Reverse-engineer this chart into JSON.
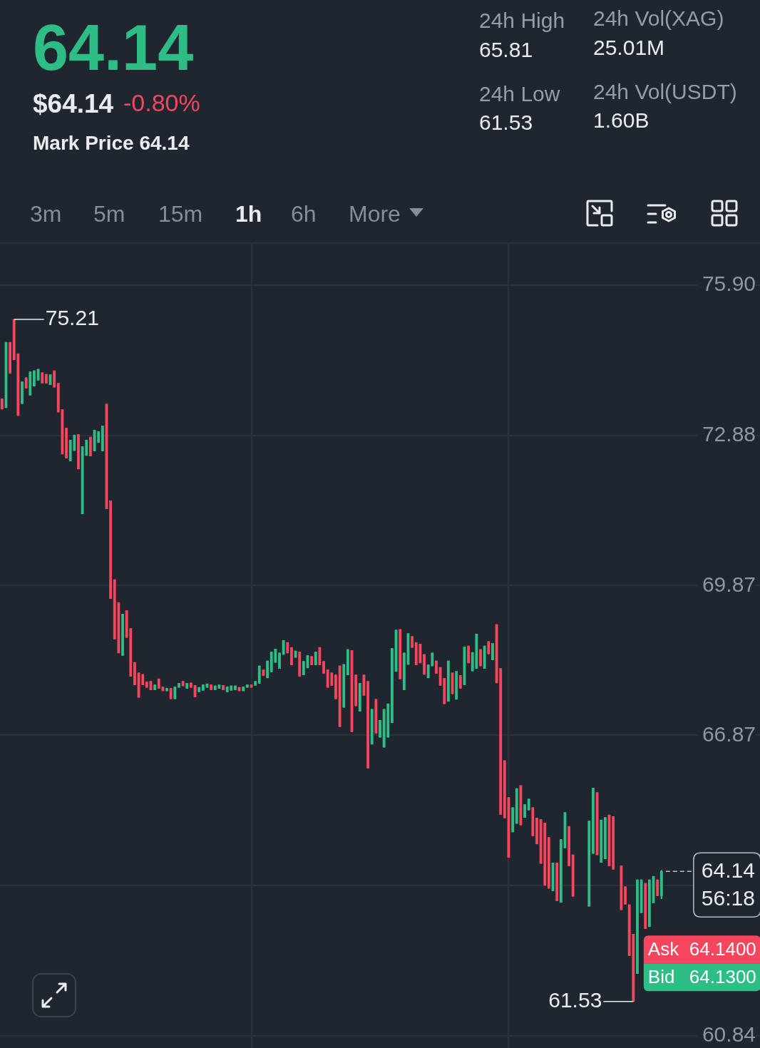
{
  "chart_data": [
    {
      "type": "other",
      "annotations": [
        "64.14",
        "$64.14",
        "-0.80%",
        "Mark Price 64.14",
        "24h High",
        "65.81",
        "24h Vol(XAG)",
        "25.01M",
        "24h Low",
        "61.53",
        "24h Vol(USDT)",
        "1.60B",
        "3m",
        "5m",
        "15m",
        "1h",
        "6h",
        "More"
      ]
    },
    {
      "type": "candlestick",
      "categories": [
        null,
        null,
        null,
        null,
        null,
        null,
        null,
        null,
        null,
        null,
        null,
        null,
        null,
        null,
        null,
        null,
        null,
        null,
        null,
        null,
        null,
        null,
        null,
        null,
        null,
        null,
        null,
        null,
        null,
        null,
        null,
        null,
        null,
        null,
        null,
        null,
        null,
        null,
        null,
        null,
        null,
        null,
        null,
        null,
        null,
        null,
        null,
        null,
        null,
        null,
        null,
        null,
        null,
        null,
        null,
        null,
        null,
        null,
        null,
        null,
        null,
        null,
        null,
        null,
        null,
        null,
        null,
        null,
        null,
        null,
        null,
        null,
        null,
        null,
        null,
        null,
        null,
        null,
        null,
        null,
        null,
        null,
        null,
        null,
        null,
        null,
        null,
        null,
        null,
        null,
        null,
        null,
        null,
        null,
        null,
        null,
        null,
        null,
        null,
        null,
        null,
        null,
        null,
        null,
        null,
        null,
        null,
        null,
        null,
        null,
        null,
        null,
        null,
        null,
        null,
        null,
        null,
        null,
        null,
        null,
        null,
        null,
        null,
        null,
        null,
        null,
        null,
        null,
        null,
        null,
        null,
        null,
        null,
        null,
        null,
        null,
        null,
        null,
        null,
        null,
        null,
        null,
        null,
        null,
        null,
        null,
        null,
        null,
        null,
        null,
        null,
        null,
        null,
        null,
        null,
        null,
        null,
        null,
        null,
        null,
        null,
        null,
        null,
        null,
        null,
        null,
        null,
        null,
        null,
        null,
        null,
        null,
        null,
        null,
        null,
        null,
        null,
        null,
        null,
        null,
        null,
        null,
        null,
        null,
        null,
        null,
        null,
        null,
        null
      ],
      "ohlc": [
        [
          73.62,
          73.62,
          73.41,
          73.41
        ],
        [
          73.44,
          74.75,
          73.44,
          74.75
        ],
        [
          74.75,
          74.75,
          74.13,
          74.13
        ],
        [
          75.21,
          75.21,
          74.4,
          74.4
        ],
        [
          74.52,
          74.52,
          73.28,
          73.28
        ],
        [
          73.52,
          73.96,
          73.52,
          73.96
        ],
        [
          74.04,
          74.04,
          73.83,
          73.83
        ],
        [
          73.69,
          74.16,
          73.69,
          74.16
        ],
        [
          73.87,
          74.18,
          73.87,
          74.18
        ],
        [
          73.99,
          74.21,
          73.99,
          74.21
        ],
        [
          74.14,
          74.14,
          73.93,
          73.93
        ],
        [
          74.11,
          74.11,
          73.93,
          73.93
        ],
        [
          73.9,
          74.1,
          73.9,
          74.1
        ],
        [
          74.18,
          74.18,
          73.85,
          73.85
        ],
        [
          73.93,
          73.93,
          73.35,
          73.35
        ],
        [
          73.4,
          73.4,
          72.51,
          72.51
        ],
        [
          73.03,
          73.03,
          72.43,
          72.43
        ],
        [
          72.37,
          72.79,
          72.37,
          72.79
        ],
        [
          72.58,
          72.89,
          72.58,
          72.89
        ],
        [
          72.9,
          72.9,
          72.21,
          72.21
        ],
        [
          71.31,
          72.66,
          71.31,
          72.66
        ],
        [
          72.48,
          72.79,
          72.48,
          72.79
        ],
        [
          72.85,
          72.85,
          72.47,
          72.47
        ],
        [
          72.57,
          72.99,
          72.57,
          72.99
        ],
        [
          72.74,
          72.96,
          72.74,
          72.96
        ],
        [
          72.57,
          73.07,
          72.57,
          73.07
        ],
        [
          73.51,
          73.51,
          71.41,
          71.41
        ],
        [
          71.57,
          71.57,
          69.61,
          69.61
        ],
        [
          69.99,
          69.99,
          68.8,
          68.8
        ],
        [
          69.53,
          69.53,
          68.52,
          68.52
        ],
        [
          68.47,
          69.3,
          68.47,
          69.3
        ],
        [
          69.37,
          69.37,
          68.83,
          68.83
        ],
        [
          69.01,
          69.01,
          68.05,
          68.05
        ],
        [
          68.33,
          68.33,
          67.88,
          67.88
        ],
        [
          68.12,
          68.12,
          67.63,
          67.63
        ],
        [
          68.09,
          68.09,
          67.88,
          67.88
        ],
        [
          67.94,
          67.94,
          67.83,
          67.83
        ],
        [
          67.95,
          67.95,
          67.78,
          67.78
        ],
        [
          67.78,
          67.88,
          67.78,
          67.88
        ],
        [
          68.0,
          68.0,
          67.81,
          67.81
        ],
        [
          67.84,
          67.84,
          67.76,
          67.76
        ],
        [
          67.76,
          67.81,
          67.76,
          67.81
        ],
        [
          67.81,
          67.81,
          67.6,
          67.6
        ],
        [
          67.6,
          67.84,
          67.6,
          67.84
        ],
        [
          67.83,
          67.91,
          67.83,
          67.91
        ],
        [
          67.95,
          67.95,
          67.86,
          67.86
        ],
        [
          67.81,
          67.91,
          67.81,
          67.91
        ],
        [
          67.92,
          67.92,
          67.83,
          67.83
        ],
        [
          67.87,
          67.87,
          67.64,
          67.64
        ],
        [
          67.74,
          67.83,
          67.74,
          67.83
        ],
        [
          67.77,
          67.88,
          67.77,
          67.88
        ],
        [
          67.83,
          67.9,
          67.83,
          67.9
        ],
        [
          67.88,
          67.88,
          67.78,
          67.78
        ],
        [
          67.78,
          67.86,
          67.78,
          67.86
        ],
        [
          67.81,
          67.88,
          67.81,
          67.88
        ],
        [
          67.87,
          67.87,
          67.78,
          67.78
        ],
        [
          67.74,
          67.84,
          67.74,
          67.84
        ],
        [
          67.77,
          67.86,
          67.77,
          67.86
        ],
        [
          67.78,
          67.86,
          67.78,
          67.86
        ],
        [
          67.83,
          67.83,
          67.76,
          67.76
        ],
        [
          67.76,
          67.84,
          67.76,
          67.84
        ],
        [
          67.83,
          67.88,
          67.83,
          67.88
        ],
        [
          67.88,
          67.88,
          67.83,
          67.83
        ],
        [
          67.87,
          67.95,
          67.87,
          67.95
        ],
        [
          67.91,
          68.26,
          67.91,
          68.26
        ],
        [
          68.18,
          68.18,
          68.07,
          68.07
        ],
        [
          68.02,
          68.36,
          68.02,
          68.36
        ],
        [
          68.14,
          68.54,
          68.14,
          68.54
        ],
        [
          68.33,
          68.6,
          68.33,
          68.6
        ],
        [
          68.21,
          68.52,
          68.21,
          68.52
        ],
        [
          68.49,
          68.77,
          68.49,
          68.77
        ],
        [
          68.73,
          68.73,
          68.52,
          68.52
        ],
        [
          68.63,
          68.63,
          68.28,
          68.28
        ],
        [
          68.43,
          68.56,
          68.43,
          68.56
        ],
        [
          68.54,
          68.54,
          68.05,
          68.05
        ],
        [
          68.08,
          68.35,
          68.08,
          68.35
        ],
        [
          68.22,
          68.47,
          68.22,
          68.47
        ],
        [
          68.45,
          68.45,
          68.28,
          68.28
        ],
        [
          68.28,
          68.54,
          68.28,
          68.54
        ],
        [
          68.63,
          68.63,
          68.28,
          68.28
        ],
        [
          68.35,
          68.35,
          68.11,
          68.11
        ],
        [
          68.18,
          68.18,
          67.83,
          67.83
        ],
        [
          68.12,
          68.12,
          67.87,
          67.87
        ],
        [
          68.08,
          68.08,
          67.6,
          67.6
        ],
        [
          68.26,
          68.26,
          67.04,
          67.04
        ],
        [
          67.43,
          68.29,
          67.43,
          68.29
        ],
        [
          68.08,
          68.59,
          68.08,
          68.59
        ],
        [
          68.57,
          68.57,
          66.94,
          66.94
        ],
        [
          68.08,
          68.08,
          67.46,
          67.46
        ],
        [
          67.35,
          67.91,
          67.35,
          67.91
        ],
        [
          68.08,
          68.08,
          67.67,
          67.67
        ],
        [
          67.95,
          67.95,
          66.21,
          66.21
        ],
        [
          66.69,
          67.39,
          66.69,
          67.39
        ],
        [
          67.59,
          67.59,
          66.91,
          66.91
        ],
        [
          66.83,
          67.17,
          66.83,
          67.17
        ],
        [
          66.63,
          67.39,
          66.63,
          67.39
        ],
        [
          66.83,
          67.5,
          66.83,
          67.5
        ],
        [
          67.12,
          68.61,
          67.12,
          68.61
        ],
        [
          68.15,
          68.98,
          68.15,
          68.98
        ],
        [
          68.99,
          68.99,
          68.0,
          68.0
        ],
        [
          67.78,
          68.52,
          67.78,
          68.52
        ],
        [
          68.29,
          68.91,
          68.29,
          68.91
        ],
        [
          68.85,
          68.85,
          68.63,
          68.63
        ],
        [
          68.73,
          68.73,
          68.28,
          68.28
        ],
        [
          68.7,
          68.7,
          68.32,
          68.32
        ],
        [
          68.49,
          68.49,
          68.09,
          68.09
        ],
        [
          68.02,
          68.28,
          68.02,
          68.28
        ],
        [
          68.26,
          68.52,
          68.26,
          68.52
        ],
        [
          68.36,
          68.36,
          68.11,
          68.11
        ],
        [
          68.23,
          68.23,
          67.87,
          67.87
        ],
        [
          68.01,
          68.01,
          67.5,
          67.5
        ],
        [
          67.55,
          68.36,
          67.55,
          68.36
        ],
        [
          68.12,
          68.12,
          67.7,
          67.7
        ],
        [
          67.59,
          68.15,
          67.59,
          68.15
        ],
        [
          68.07,
          68.07,
          67.81,
          67.81
        ],
        [
          67.88,
          68.64,
          67.88,
          68.64
        ],
        [
          68.66,
          68.66,
          68.32,
          68.32
        ],
        [
          68.16,
          68.53,
          68.16,
          68.53
        ],
        [
          68.21,
          68.9,
          68.21,
          68.9
        ],
        [
          68.59,
          68.59,
          68.26,
          68.26
        ],
        [
          68.21,
          68.66,
          68.21,
          68.66
        ],
        [
          68.75,
          68.75,
          68.5,
          68.5
        ],
        [
          68.38,
          68.71,
          68.38,
          68.71
        ],
        [
          69.09,
          69.09,
          67.92,
          67.92
        ],
        [
          68.21,
          68.21,
          65.28,
          65.28
        ],
        [
          66.36,
          66.36,
          65.21,
          65.21
        ],
        [
          65.62,
          65.62,
          64.42,
          64.42
        ],
        [
          64.93,
          65.42,
          64.93,
          65.42
        ],
        [
          65.1,
          65.8,
          65.1,
          65.8
        ],
        [
          65.86,
          65.86,
          65.07,
          65.07
        ],
        [
          65.22,
          65.48,
          65.22,
          65.48
        ],
        [
          65.37,
          65.59,
          65.37,
          65.59
        ],
        [
          65.42,
          65.42,
          64.85,
          64.85
        ],
        [
          65.21,
          65.21,
          64.69,
          64.69
        ],
        [
          65.18,
          65.18,
          64.3,
          64.3
        ],
        [
          65.11,
          65.11,
          63.86,
          63.86
        ],
        [
          64.82,
          64.82,
          63.8,
          63.8
        ],
        [
          63.75,
          64.31,
          63.75,
          64.31
        ],
        [
          64.31,
          64.31,
          63.55,
          63.55
        ],
        [
          63.52,
          64.78,
          63.52,
          64.78
        ],
        [
          64.61,
          65.32,
          64.61,
          65.32
        ],
        [
          65.04,
          65.04,
          64.25,
          64.25
        ],
        [
          64.47,
          64.47,
          63.64,
          63.64
        ],
        null,
        null,
        null,
        [
          63.44,
          65.15,
          63.44,
          65.15
        ],
        [
          64.5,
          65.81,
          64.5,
          65.81
        ],
        [
          65.72,
          65.72,
          64.47,
          64.47
        ],
        [
          64.32,
          65.17,
          64.32,
          65.17
        ],
        [
          64.39,
          65.22,
          64.39,
          65.22
        ],
        [
          65.27,
          65.27,
          64.25,
          64.25
        ],
        [
          65.24,
          65.24,
          64.18,
          64.18
        ],
        null,
        [
          64.25,
          64.25,
          63.37,
          63.37
        ],
        [
          63.83,
          63.83,
          63.48,
          63.48
        ],
        [
          63.47,
          63.47,
          62.45,
          62.45
        ],
        [
          62.88,
          62.88,
          61.53,
          61.53
        ],
        [
          62.09,
          63.97,
          62.09,
          63.97
        ],
        [
          63.31,
          63.97,
          63.31,
          63.97
        ],
        [
          63.9,
          63.9,
          62.99,
          62.99
        ],
        [
          63.03,
          63.97,
          63.03,
          63.97
        ],
        [
          63.51,
          64.04,
          63.51,
          64.04
        ],
        [
          63.97,
          63.97,
          63.65,
          63.65
        ],
        [
          63.65,
          64.16,
          63.59,
          64.14
        ],
        null,
        null,
        null,
        null,
        null,
        null,
        null,
        null,
        null,
        null,
        null,
        null,
        null,
        null,
        null,
        null,
        null,
        null,
        null,
        null,
        null,
        null,
        null,
        null
      ],
      "colors": [
        "#f6465d",
        "#2ebd85",
        "#f6465d",
        "#f6465d",
        "#f6465d",
        "#2ebd85",
        "#f6465d",
        "#2ebd85",
        "#2ebd85",
        "#2ebd85",
        "#f6465d",
        "#f6465d",
        "#2ebd85",
        "#f6465d",
        "#f6465d",
        "#f6465d",
        "#f6465d",
        "#2ebd85",
        "#2ebd85",
        "#f6465d",
        "#2ebd85",
        "#2ebd85",
        "#f6465d",
        "#2ebd85",
        "#2ebd85",
        "#2ebd85",
        "#f6465d",
        "#f6465d",
        "#f6465d",
        "#f6465d",
        "#2ebd85",
        "#f6465d",
        "#f6465d",
        "#f6465d",
        "#f6465d",
        "#f6465d",
        "#f6465d",
        "#f6465d",
        "#2ebd85",
        "#f6465d",
        "#f6465d",
        "#2ebd85",
        "#f6465d",
        "#2ebd85",
        "#2ebd85",
        "#f6465d",
        "#2ebd85",
        "#f6465d",
        "#f6465d",
        "#2ebd85",
        "#2ebd85",
        "#2ebd85",
        "#f6465d",
        "#2ebd85",
        "#2ebd85",
        "#f6465d",
        "#2ebd85",
        "#2ebd85",
        "#2ebd85",
        "#f6465d",
        "#2ebd85",
        "#2ebd85",
        "#f6465d",
        "#2ebd85",
        "#2ebd85",
        "#f6465d",
        "#2ebd85",
        "#2ebd85",
        "#2ebd85",
        "#2ebd85",
        "#2ebd85",
        "#f6465d",
        "#f6465d",
        "#2ebd85",
        "#f6465d",
        "#2ebd85",
        "#2ebd85",
        "#f6465d",
        "#2ebd85",
        "#f6465d",
        "#f6465d",
        "#f6465d",
        "#f6465d",
        "#f6465d",
        "#f6465d",
        "#2ebd85",
        "#2ebd85",
        "#f6465d",
        "#f6465d",
        "#2ebd85",
        "#f6465d",
        "#f6465d",
        "#2ebd85",
        "#f6465d",
        "#2ebd85",
        "#2ebd85",
        "#2ebd85",
        "#2ebd85",
        "#2ebd85",
        "#f6465d",
        "#2ebd85",
        "#2ebd85",
        "#f6465d",
        "#f6465d",
        "#f6465d",
        "#f6465d",
        "#2ebd85",
        "#2ebd85",
        "#f6465d",
        "#f6465d",
        "#f6465d",
        "#2ebd85",
        "#f6465d",
        "#2ebd85",
        "#f6465d",
        "#2ebd85",
        "#f6465d",
        "#2ebd85",
        "#2ebd85",
        "#f6465d",
        "#2ebd85",
        "#f6465d",
        "#2ebd85",
        "#f6465d",
        "#f6465d",
        "#f6465d",
        "#f6465d",
        "#2ebd85",
        "#2ebd85",
        "#f6465d",
        "#2ebd85",
        "#2ebd85",
        "#f6465d",
        "#f6465d",
        "#f6465d",
        "#f6465d",
        "#f6465d",
        "#2ebd85",
        "#f6465d",
        "#2ebd85",
        "#2ebd85",
        "#f6465d",
        "#f6465d",
        null,
        null,
        null,
        "#2ebd85",
        "#2ebd85",
        "#f6465d",
        "#2ebd85",
        "#2ebd85",
        "#f6465d",
        "#f6465d",
        null,
        "#f6465d",
        "#f6465d",
        "#f6465d",
        "#f6465d",
        "#2ebd85",
        "#2ebd85",
        "#f6465d",
        "#2ebd85",
        "#2ebd85",
        "#f6465d",
        "#2ebd85",
        null,
        null,
        null,
        null,
        null,
        null,
        null,
        null,
        null,
        null,
        null,
        null,
        null,
        null,
        null,
        null,
        null,
        null,
        null,
        null,
        null,
        null,
        null,
        null
      ],
      "ylim": [
        60.84,
        76.74
      ],
      "yticks": [
        60.84,
        {
          "value": 63.86,
          "label": null
        },
        66.87,
        69.87,
        72.88,
        {
          "value": 75.9,
          "label": "75.90"
        }
      ],
      "grid": true,
      "tick_labels": "y",
      "ref_lines": [
        {
          "axis": "y",
          "value": 64.14,
          "label": "64.14",
          "line_style": "dashed",
          "color": "#b7bdc6"
        }
      ],
      "annotations": [
        "75.21",
        "61.53",
        "Ask 64.1400",
        "Bid 64.1300",
        "56:18"
      ]
    }
  ]
}
